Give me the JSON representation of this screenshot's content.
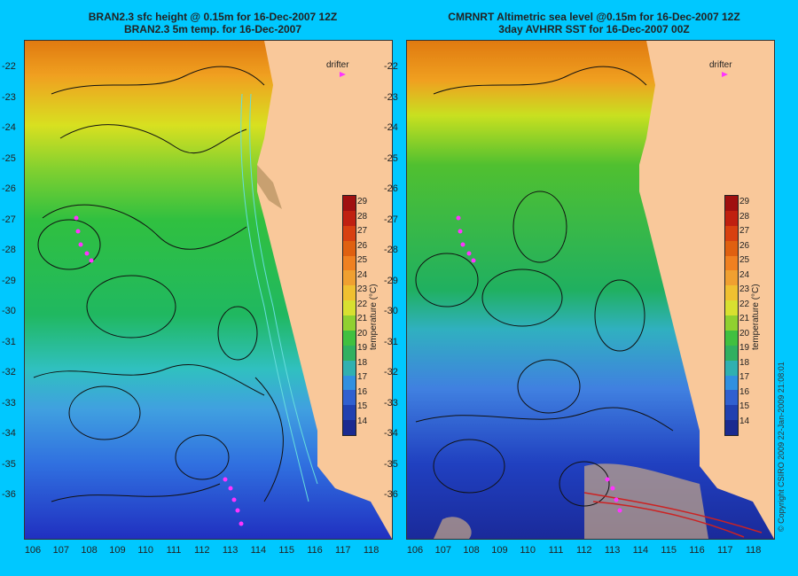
{
  "left_panel": {
    "title_line1": "BRAN2.3 sfc height @ 0.15m for 16-Dec-2007 12Z",
    "title_line2": "BRAN2.3 5m temp. for 16-Dec-2007",
    "drifter_label": "drifter"
  },
  "right_panel": {
    "title_line1": "CMRNRT Altimetric sea level  @0.15m  for 16-Dec-2007 12Z",
    "title_line2": "3day AVHRR SST for 16-Dec-2007 00Z",
    "drifter_label": "drifter"
  },
  "latitude_ticks": [
    "-22",
    "-23",
    "-24",
    "-25",
    "-26",
    "-27",
    "-28",
    "-29",
    "-30",
    "-31",
    "-32",
    "-33",
    "-34",
    "-35",
    "-36"
  ],
  "longitude_ticks": [
    "106",
    "107",
    "108",
    "109",
    "110",
    "111",
    "112",
    "113",
    "114",
    "115",
    "116",
    "117",
    "118"
  ],
  "colorbar": {
    "label": "temperature (°C)",
    "ticks": [
      "29",
      "28",
      "27",
      "26",
      "25",
      "24",
      "23",
      "22",
      "21",
      "20",
      "19",
      "18",
      "17",
      "16",
      "15",
      "14"
    ]
  },
  "copyright": "© Copyright CSIRO 2009   22-Jan-2009 21:08:01",
  "colors": {
    "background": "#00c8ff",
    "land": "#f9c89a",
    "drifter": "#ff33ff",
    "contour": "#111111",
    "bathymetry": "#66dddd"
  }
}
